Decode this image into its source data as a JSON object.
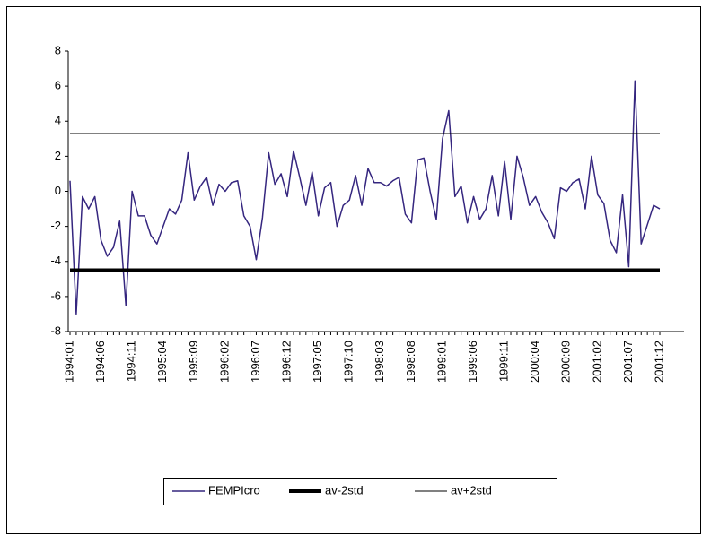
{
  "chart_data": {
    "type": "line",
    "categories": [
      "1994:01",
      null,
      null,
      null,
      null,
      "1994:06",
      null,
      null,
      null,
      null,
      "1994:11",
      null,
      null,
      null,
      null,
      "1995:04",
      null,
      null,
      null,
      null,
      "1995:09",
      null,
      null,
      null,
      null,
      "1996:02",
      null,
      null,
      null,
      null,
      "1996:07",
      null,
      null,
      null,
      null,
      "1996:12",
      null,
      null,
      null,
      null,
      "1997:05",
      null,
      null,
      null,
      null,
      "1997:10",
      null,
      null,
      null,
      null,
      "1998:03",
      null,
      null,
      null,
      null,
      "1998:08",
      null,
      null,
      null,
      null,
      "1999:01",
      null,
      null,
      null,
      null,
      "1999:06",
      null,
      null,
      null,
      null,
      "1999:11",
      null,
      null,
      null,
      null,
      "2000:04",
      null,
      null,
      null,
      null,
      "2000:09",
      null,
      null,
      null,
      null,
      "2001:02",
      null,
      null,
      null,
      null,
      "2001:07",
      null,
      null,
      null,
      null,
      "2001:12"
    ],
    "series": [
      {
        "name": "FEMPIcro",
        "color": "#35267f",
        "width": 1.5,
        "values": [
          0.6,
          -7.0,
          -0.3,
          -1.0,
          -0.3,
          -2.8,
          -3.7,
          -3.2,
          -1.7,
          -6.5,
          0.0,
          -1.4,
          -1.4,
          -2.5,
          -3.0,
          -2.0,
          -1.0,
          -1.3,
          -0.5,
          2.2,
          -0.5,
          0.3,
          0.8,
          -0.8,
          0.4,
          0.0,
          0.5,
          0.6,
          -1.4,
          -2.0,
          -3.9,
          -1.5,
          2.2,
          0.4,
          1.0,
          -0.3,
          2.3,
          0.8,
          -0.8,
          1.1,
          -1.4,
          0.2,
          0.5,
          -2.0,
          -0.8,
          -0.5,
          0.9,
          -0.8,
          1.3,
          0.5,
          0.5,
          0.3,
          0.6,
          0.8,
          -1.3,
          -1.8,
          1.8,
          1.9,
          0.0,
          -1.6,
          3.0,
          4.6,
          -0.3,
          0.3,
          -1.8,
          -0.3,
          -1.6,
          -1.0,
          0.9,
          -1.4,
          1.7,
          -1.6,
          2.0,
          0.8,
          -0.8,
          -0.3,
          -1.2,
          -1.8,
          -2.7,
          0.2,
          0.0,
          0.5,
          0.7,
          -1.0,
          2.0,
          -0.2,
          -0.7,
          -2.8,
          -3.5,
          -0.2,
          -4.3,
          6.3,
          -3.0,
          -1.9,
          -0.8,
          -1.0
        ]
      },
      {
        "name": "av-2std",
        "color": "#000000",
        "width": 4,
        "values": [
          -4.5,
          -4.5,
          -4.5,
          -4.5,
          -4.5,
          -4.5,
          -4.5,
          -4.5,
          -4.5,
          -4.5,
          -4.5,
          -4.5,
          -4.5,
          -4.5,
          -4.5,
          -4.5,
          -4.5,
          -4.5,
          -4.5,
          -4.5,
          -4.5,
          -4.5,
          -4.5,
          -4.5,
          -4.5,
          -4.5,
          -4.5,
          -4.5,
          -4.5,
          -4.5,
          -4.5,
          -4.5,
          -4.5,
          -4.5,
          -4.5,
          -4.5,
          -4.5,
          -4.5,
          -4.5,
          -4.5,
          -4.5,
          -4.5,
          -4.5,
          -4.5,
          -4.5,
          -4.5,
          -4.5,
          -4.5,
          -4.5,
          -4.5,
          -4.5,
          -4.5,
          -4.5,
          -4.5,
          -4.5,
          -4.5,
          -4.5,
          -4.5,
          -4.5,
          -4.5,
          -4.5,
          -4.5,
          -4.5,
          -4.5,
          -4.5,
          -4.5,
          -4.5,
          -4.5,
          -4.5,
          -4.5,
          -4.5,
          -4.5,
          -4.5,
          -4.5,
          -4.5,
          -4.5,
          -4.5,
          -4.5,
          -4.5,
          -4.5,
          -4.5,
          -4.5,
          -4.5,
          -4.5,
          -4.5,
          -4.5,
          -4.5,
          -4.5,
          -4.5,
          -4.5,
          -4.5,
          -4.5,
          -4.5,
          -4.5,
          -4.5,
          -4.5
        ]
      },
      {
        "name": "av+2std",
        "color": "#000000",
        "width": 1,
        "values": [
          3.3,
          3.3,
          3.3,
          3.3,
          3.3,
          3.3,
          3.3,
          3.3,
          3.3,
          3.3,
          3.3,
          3.3,
          3.3,
          3.3,
          3.3,
          3.3,
          3.3,
          3.3,
          3.3,
          3.3,
          3.3,
          3.3,
          3.3,
          3.3,
          3.3,
          3.3,
          3.3,
          3.3,
          3.3,
          3.3,
          3.3,
          3.3,
          3.3,
          3.3,
          3.3,
          3.3,
          3.3,
          3.3,
          3.3,
          3.3,
          3.3,
          3.3,
          3.3,
          3.3,
          3.3,
          3.3,
          3.3,
          3.3,
          3.3,
          3.3,
          3.3,
          3.3,
          3.3,
          3.3,
          3.3,
          3.3,
          3.3,
          3.3,
          3.3,
          3.3,
          3.3,
          3.3,
          3.3,
          3.3,
          3.3,
          3.3,
          3.3,
          3.3,
          3.3,
          3.3,
          3.3,
          3.3,
          3.3,
          3.3,
          3.3,
          3.3,
          3.3,
          3.3,
          3.3,
          3.3,
          3.3,
          3.3,
          3.3,
          3.3,
          3.3,
          3.3,
          3.3,
          3.3,
          3.3,
          3.3,
          3.3,
          3.3,
          3.3,
          3.3,
          3.3,
          3.3
        ]
      }
    ],
    "ylim": [
      -8,
      8
    ],
    "yticks": [
      -8,
      -6,
      -4,
      -2,
      0,
      2,
      4,
      6,
      8
    ],
    "grid": false,
    "legend": "bottom"
  }
}
